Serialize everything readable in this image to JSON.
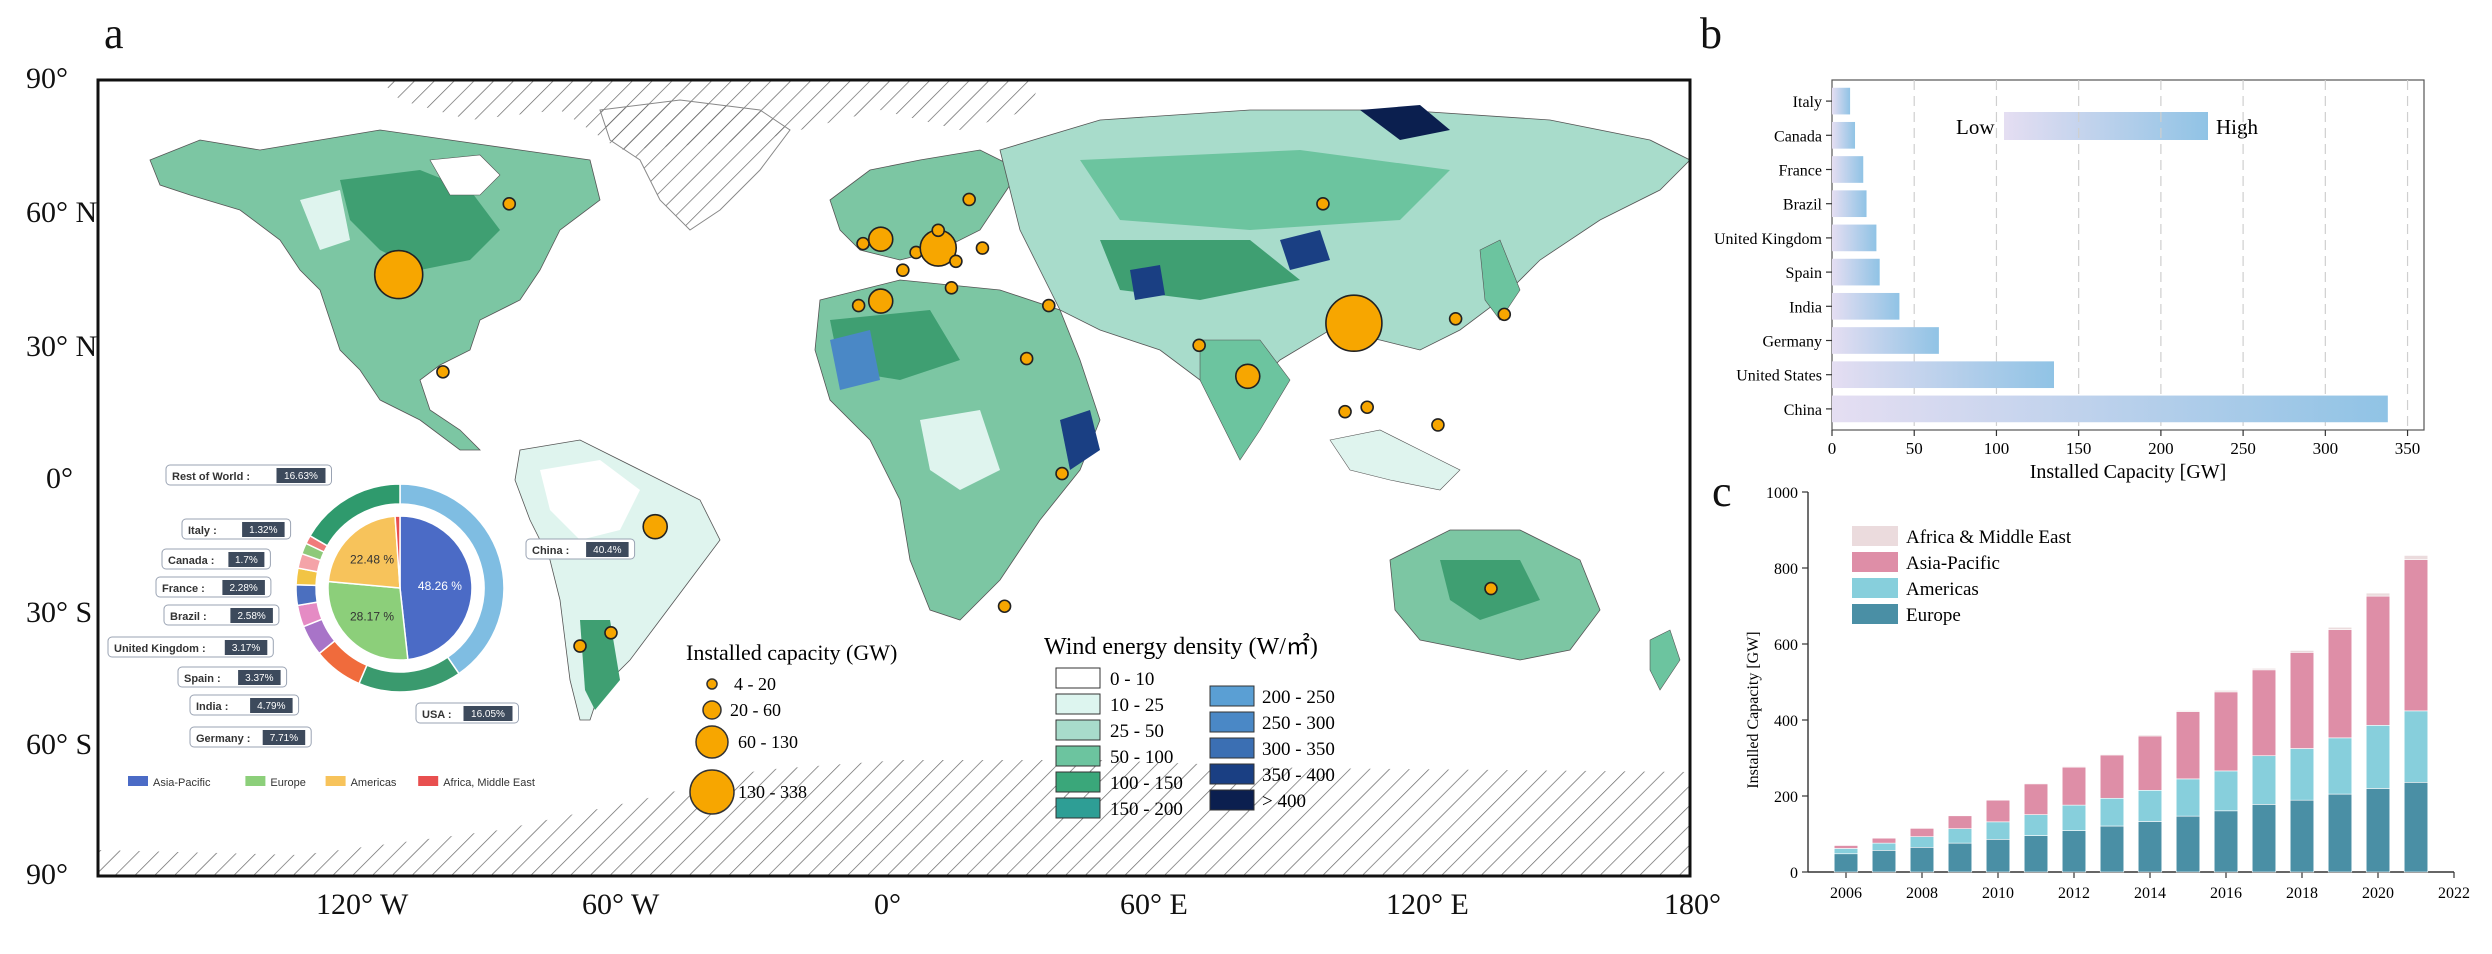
{
  "panels": {
    "a": "a",
    "b": "b",
    "c": "c"
  },
  "map": {
    "lat_labels": [
      "90°",
      "60° N",
      "30° N",
      "0°",
      "30° S",
      "60° S",
      "90°"
    ],
    "lon_labels": [
      "120° W",
      "60° W",
      "0°",
      "60° E",
      "120° E",
      "180°"
    ],
    "capacity_legend": {
      "title": "Installed capacity (GW)",
      "items": [
        "4 - 20",
        "20 - 60",
        "60 - 130",
        "130 - 338"
      ]
    },
    "density_legend": {
      "title": "Wind energy density (W/㎡)",
      "items_left": [
        "0 - 10",
        "10 - 25",
        "25 - 50",
        "50 - 100",
        "100 - 150",
        "150 - 200"
      ],
      "items_right": [
        "200 - 250",
        "250 - 300",
        "300 - 350",
        "350 - 400",
        "> 400"
      ],
      "colors_left": [
        "#ffffff",
        "#ddf5ef",
        "#a8dccb",
        "#6cc49f",
        "#3aa77a",
        "#2e9e95"
      ],
      "colors_right": [
        "#5a9fd4",
        "#4a88c6",
        "#3b6fb3",
        "#1a3f83",
        "#0b1f4f"
      ]
    },
    "sites": [
      {
        "lon": -112,
        "lat": 46,
        "cap": 150
      },
      {
        "lon": -87,
        "lat": 62,
        "cap": 8
      },
      {
        "lon": -102,
        "lat": 24,
        "cap": 10
      },
      {
        "lon": -54,
        "lat": -11,
        "cap": 25
      },
      {
        "lon": -71,
        "lat": -38,
        "cap": 8
      },
      {
        "lon": -64,
        "lat": -35,
        "cap": 8
      },
      {
        "lon": -3,
        "lat": 40,
        "cap": 28
      },
      {
        "lon": -8,
        "lat": 39,
        "cap": 8
      },
      {
        "lon": -7,
        "lat": 53,
        "cap": 8
      },
      {
        "lon": -3,
        "lat": 54,
        "cap": 28
      },
      {
        "lon": 2,
        "lat": 47,
        "cap": 15
      },
      {
        "lon": 5,
        "lat": 51,
        "cap": 10
      },
      {
        "lon": 10,
        "lat": 52,
        "cap": 64
      },
      {
        "lon": 10,
        "lat": 56,
        "cap": 8
      },
      {
        "lon": 13,
        "lat": 43,
        "cap": 10
      },
      {
        "lon": 14,
        "lat": 49,
        "cap": 8
      },
      {
        "lon": 17,
        "lat": 63,
        "cap": 8
      },
      {
        "lon": 20,
        "lat": 52,
        "cap": 8
      },
      {
        "lon": 35,
        "lat": 39,
        "cap": 10
      },
      {
        "lon": 30,
        "lat": 27,
        "cap": 6
      },
      {
        "lon": 38,
        "lat": 1,
        "cap": 6
      },
      {
        "lon": 25,
        "lat": -29,
        "cap": 6
      },
      {
        "lon": 97,
        "lat": 62,
        "cap": 6
      },
      {
        "lon": 104,
        "lat": 35,
        "cap": 338
      },
      {
        "lon": 127,
        "lat": 36,
        "cap": 8
      },
      {
        "lon": 138,
        "lat": 37,
        "cap": 8
      },
      {
        "lon": 69,
        "lat": 30,
        "cap": 8
      },
      {
        "lon": 80,
        "lat": 23,
        "cap": 40
      },
      {
        "lon": 102,
        "lat": 15,
        "cap": 8
      },
      {
        "lon": 107,
        "lat": 16,
        "cap": 8
      },
      {
        "lon": 123,
        "lat": 12,
        "cap": 8
      },
      {
        "lon": 135,
        "lat": -25,
        "cap": 8
      }
    ],
    "donut": {
      "outer": [
        {
          "name": "China",
          "value": 40.4,
          "color": "#7fbde2"
        },
        {
          "name": "USA",
          "value": 16.05,
          "color": "#3a9a6e"
        },
        {
          "name": "Germany",
          "value": 7.71,
          "color": "#f06b3c"
        },
        {
          "name": "India",
          "value": 4.79,
          "color": "#a874c8"
        },
        {
          "name": "Spain",
          "value": 3.37,
          "color": "#e58bc4"
        },
        {
          "name": "United Kingdom",
          "value": 3.17,
          "color": "#4b6fbf"
        },
        {
          "name": "Brazil",
          "value": 2.58,
          "color": "#f2c444"
        },
        {
          "name": "France",
          "value": 2.28,
          "color": "#f4a3a8"
        },
        {
          "name": "Canada",
          "value": 1.7,
          "color": "#8ec97a"
        },
        {
          "name": "Italy",
          "value": 1.32,
          "color": "#f07b7b"
        },
        {
          "name": "Rest of World",
          "value": 16.63,
          "color": "#2f9a6d"
        }
      ],
      "inner": [
        {
          "name": "Asia-Pacific",
          "value": 48.26,
          "label": "48.26 %",
          "color": "#4b6bc6"
        },
        {
          "name": "Europe",
          "value": 28.17,
          "label": "28.17 %",
          "color": "#8ccf7a"
        },
        {
          "name": "Americas",
          "value": 22.48,
          "label": "22.48 %",
          "color": "#f7c35b"
        },
        {
          "name": "Africa, Middle East",
          "value": 1.09,
          "label": "",
          "color": "#e84f4f"
        }
      ],
      "callouts": [
        {
          "name": "Rest of World :",
          "pct": "16.63%"
        },
        {
          "name": "Italy :",
          "pct": "1.32%"
        },
        {
          "name": "Canada :",
          "pct": "1.7%"
        },
        {
          "name": "France :",
          "pct": "2.28%"
        },
        {
          "name": "Brazil :",
          "pct": "2.58%"
        },
        {
          "name": "United Kingdom :",
          "pct": "3.17%"
        },
        {
          "name": "Spain :",
          "pct": "3.37%"
        },
        {
          "name": "India :",
          "pct": "4.79%"
        },
        {
          "name": "Germany :",
          "pct": "7.71%"
        },
        {
          "name": "China :",
          "pct": "40.4%"
        },
        {
          "name": "USA :",
          "pct": "16.05%"
        }
      ],
      "legend": [
        "Asia-Pacific",
        "Europe",
        "Americas",
        "Africa, Middle East"
      ]
    }
  },
  "chart_data": [
    {
      "type": "bar",
      "orientation": "horizontal",
      "categories": [
        "Italy",
        "Canada",
        "France",
        "Brazil",
        "United Kingdom",
        "Spain",
        "India",
        "Germany",
        "United States",
        "China"
      ],
      "values": [
        11,
        14,
        19,
        21,
        27,
        29,
        41,
        65,
        135,
        338
      ],
      "xlabel": "Installed Capacity [GW]",
      "xlim": [
        0,
        360
      ],
      "xticks": [
        0,
        50,
        100,
        150,
        200,
        250,
        300,
        350
      ],
      "grid": "vertical dashed",
      "colorbar": {
        "low": "Low",
        "high": "High"
      }
    },
    {
      "type": "bar",
      "stacked": true,
      "categories": [
        2006,
        2007,
        2008,
        2009,
        2010,
        2011,
        2012,
        2013,
        2014,
        2015,
        2016,
        2017,
        2018,
        2019,
        2020,
        2021
      ],
      "series": [
        {
          "name": "Europe",
          "color": "#4a8fa5",
          "values": [
            48,
            57,
            65,
            76,
            86,
            96,
            109,
            121,
            133,
            147,
            161,
            178,
            189,
            205,
            220,
            236
          ]
        },
        {
          "name": "Americas",
          "color": "#87cfdc",
          "values": [
            14,
            19,
            28,
            38,
            46,
            55,
            67,
            73,
            82,
            98,
            105,
            128,
            136,
            148,
            166,
            188
          ]
        },
        {
          "name": "Asia-Pacific",
          "color": "#de8ea7",
          "values": [
            8,
            13,
            22,
            34,
            57,
            81,
            100,
            114,
            143,
            177,
            208,
            226,
            253,
            285,
            340,
            398
          ]
        },
        {
          "name": "Africa & Middle East",
          "color": "#ebdbdd",
          "values": [
            1,
            1,
            1,
            1,
            1,
            2,
            2,
            2,
            3,
            3,
            4,
            4,
            5,
            6,
            8,
            11
          ]
        }
      ],
      "legend_order": [
        "Africa & Middle East",
        "Asia-Pacific",
        "Americas",
        "Europe"
      ],
      "ylabel": "Installed Capacity [GW]",
      "ylim": [
        0,
        1000
      ],
      "yticks": [
        0,
        200,
        400,
        600,
        800,
        1000
      ],
      "xticks": [
        2006,
        2008,
        2010,
        2012,
        2014,
        2016,
        2018,
        2020,
        2022
      ]
    }
  ]
}
